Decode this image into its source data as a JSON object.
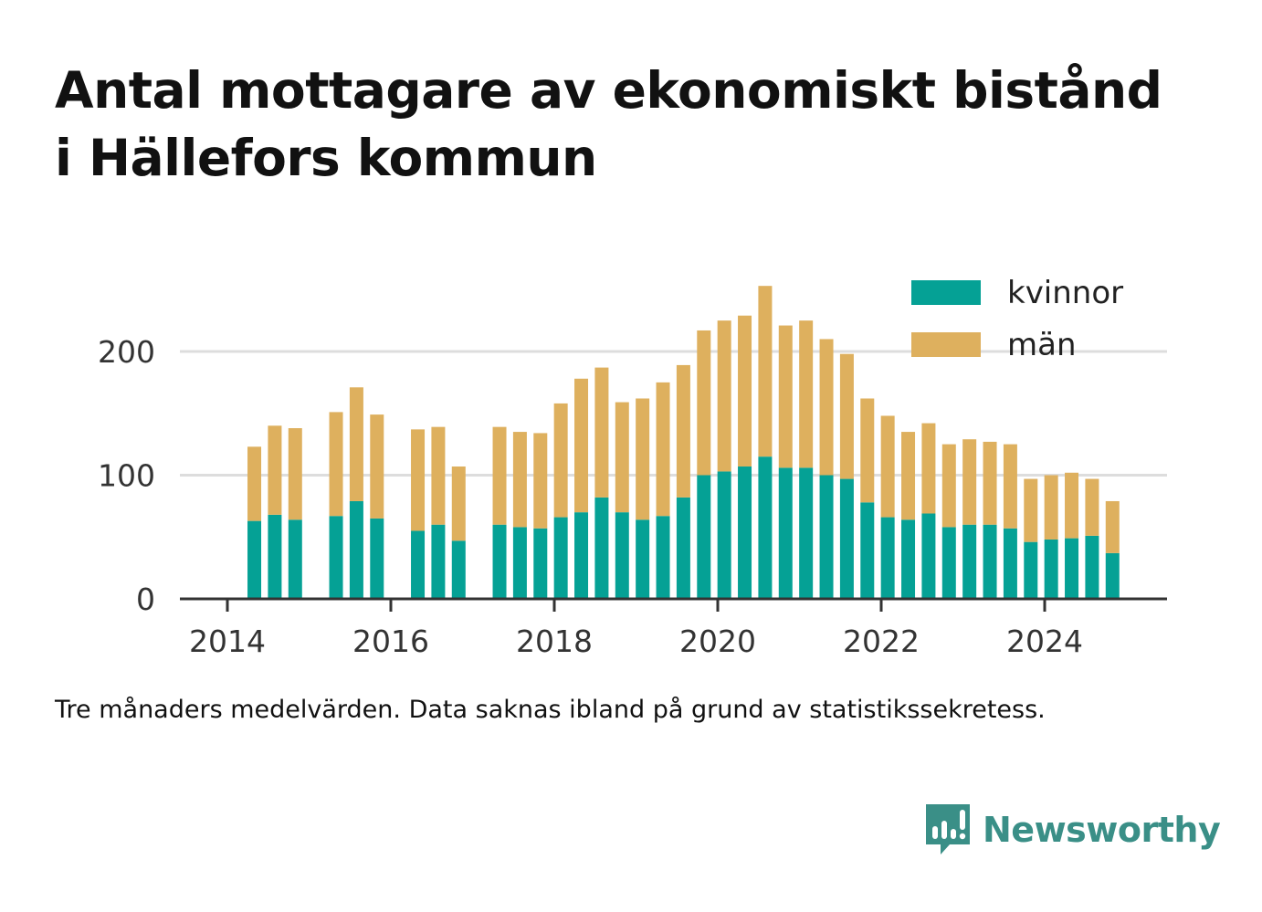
{
  "title_lines": [
    "Antal mottagare av ekonomiskt bistånd",
    "i Hällefors kommun"
  ],
  "note": "Tre månaders medelvärden. Data saknas ibland på grund av statistikssekretess.",
  "brand": "Newsworthy",
  "colors": {
    "kvinnor": "#05a195",
    "man": "#deb05e",
    "grid": "#dddddd",
    "axis": "#333333",
    "brand": "#3a8f87"
  },
  "chart_data": {
    "type": "bar",
    "stacked": true,
    "x_ticks": [
      "2014",
      "2016",
      "2018",
      "2020",
      "2022",
      "2024"
    ],
    "y_ticks": [
      "0",
      "100",
      "200"
    ],
    "ylim": [
      0,
      250
    ],
    "xlim": [
      2013.5,
      2025.5
    ],
    "grid": "horizontal",
    "legend_position": "top-right",
    "x": [
      2014.33,
      2014.58,
      2014.83,
      2015.33,
      2015.58,
      2015.83,
      2016.33,
      2016.58,
      2016.83,
      2017.33,
      2017.58,
      2017.83,
      2018.08,
      2018.33,
      2018.58,
      2018.83,
      2019.08,
      2019.33,
      2019.58,
      2019.83,
      2020.08,
      2020.33,
      2020.58,
      2020.83,
      2021.08,
      2021.33,
      2021.58,
      2021.83,
      2022.08,
      2022.33,
      2022.58,
      2022.83,
      2023.08,
      2023.33,
      2023.58,
      2023.83,
      2024.08,
      2024.33,
      2024.58,
      2024.83
    ],
    "series": [
      {
        "name": "kvinnor",
        "values": [
          63,
          68,
          64,
          67,
          79,
          65,
          55,
          60,
          47,
          60,
          58,
          57,
          66,
          70,
          82,
          70,
          64,
          67,
          82,
          100,
          103,
          107,
          115,
          106,
          106,
          100,
          97,
          78,
          66,
          64,
          69,
          58,
          60,
          60,
          57,
          46,
          48,
          49,
          51,
          37
        ]
      },
      {
        "name": "män",
        "values": [
          60,
          72,
          74,
          84,
          92,
          84,
          82,
          79,
          60,
          79,
          77,
          77,
          92,
          108,
          105,
          89,
          98,
          108,
          107,
          117,
          122,
          122,
          138,
          115,
          119,
          110,
          101,
          84,
          82,
          71,
          73,
          67,
          69,
          67,
          68,
          51,
          52,
          53,
          46,
          42
        ]
      }
    ]
  }
}
